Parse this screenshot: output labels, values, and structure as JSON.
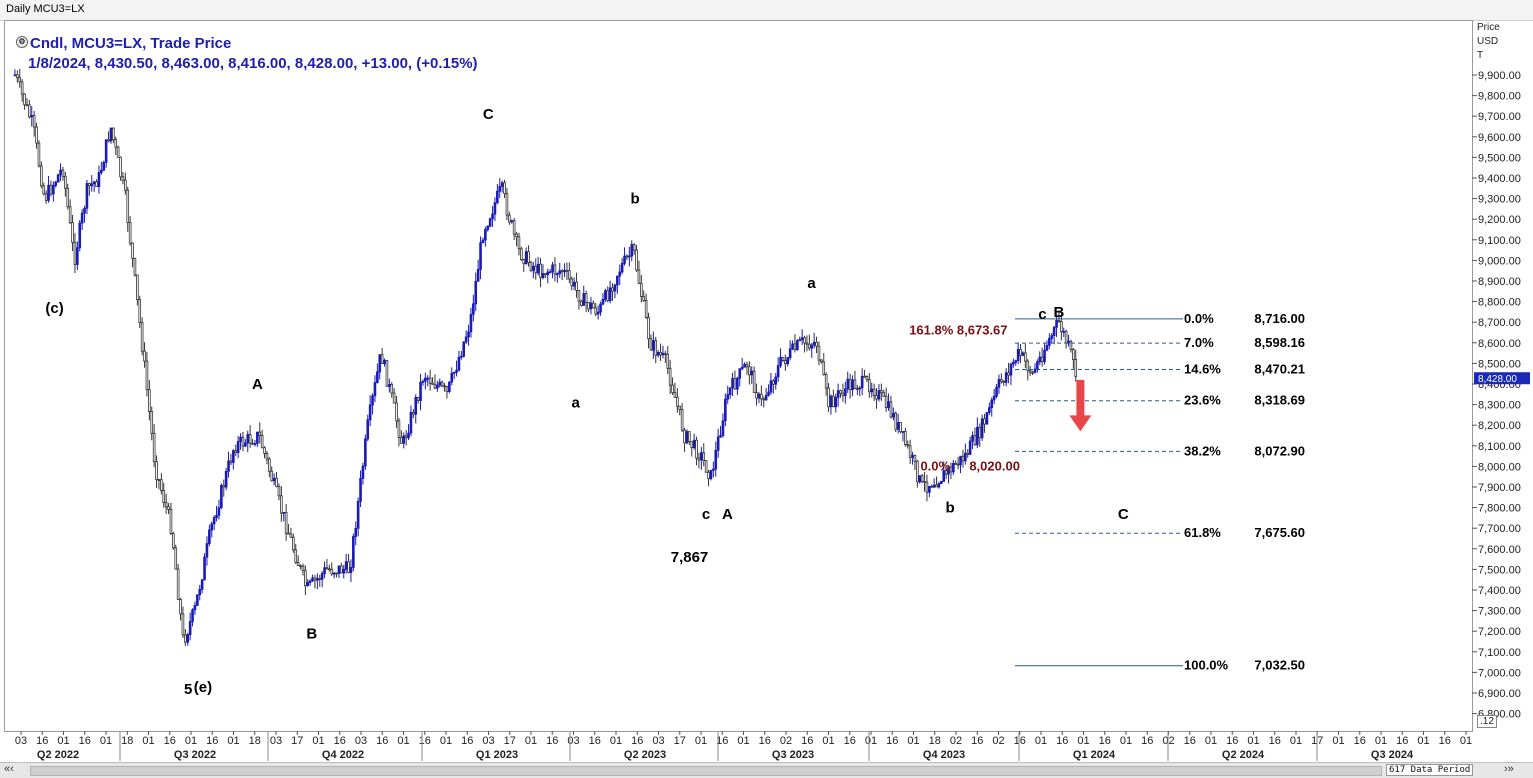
{
  "window": {
    "title": "Daily MCU3=LX"
  },
  "legend": {
    "line1": "Cndl, MCU3=LX, Trade Price",
    "line2": "1/8/2024, 8,430.50, 8,463.00, 8,416.00, 8,428.00, +13.00, (+0.15%)"
  },
  "axis": {
    "price_header": [
      "Price",
      "USD",
      "T"
    ],
    "y_ticks": [
      "9,900.00",
      "9,800.00",
      "9,700.00",
      "9,600.00",
      "9,500.00",
      "9,400.00",
      "9,300.00",
      "9,200.00",
      "9,100.00",
      "9,000.00",
      "8,900.00",
      "8,800.00",
      "8,700.00",
      "8,600.00",
      "8,500.00",
      "8,400.00",
      "8,300.00",
      "8,200.00",
      "8,100.00",
      "8,000.00",
      "7,900.00",
      "7,800.00",
      "7,700.00",
      "7,600.00",
      "7,500.00",
      "7,400.00",
      "7,300.00",
      "7,200.00",
      "7,100.00",
      "7,000.00",
      "6,900.00",
      "6,800.00"
    ],
    "x_day_ticks": [
      "03",
      "16",
      "01",
      "16",
      "01",
      "18",
      "01",
      "16",
      "01",
      "16",
      "01",
      "18",
      "03",
      "17",
      "01",
      "16",
      "03",
      "16",
      "01",
      "16",
      "01",
      "16",
      "03",
      "17",
      "01",
      "16",
      "03",
      "16",
      "01",
      "16",
      "03",
      "17",
      "01",
      "16",
      "01",
      "16",
      "02",
      "16",
      "01",
      "16",
      "01",
      "16",
      "01",
      "18",
      "02",
      "16",
      "02",
      "16",
      "01",
      "16",
      "01",
      "16",
      "01",
      "16",
      "02",
      "16",
      "01",
      "16",
      "01",
      "16",
      "01",
      "17",
      "01",
      "16",
      "01",
      "16",
      "01",
      "16",
      "01"
    ],
    "quarter_labels": [
      "Q2 2022",
      "Q3 2022",
      "Q4 2022",
      "Q1 2023",
      "Q2 2023",
      "Q3 2023",
      "Q4 2023",
      "Q1 2024",
      "Q2 2024",
      "Q3 2024"
    ],
    "last_price_label": "8,428.00",
    "corner_label": ".12"
  },
  "footer": {
    "data_period": "617 Data Period",
    "scroll_left": "«‹",
    "scroll_right": "›»"
  },
  "colors": {
    "candle_up": "#1a1ab8",
    "candle_down": "#333333",
    "legend": "#1f20b0",
    "fib_line": "#2a5a9a",
    "fib_text_dark": "#7a0f14",
    "arrow": "#e8474a"
  },
  "chart_data": {
    "type": "candlestick",
    "title": "Daily MCU3=LX",
    "ylabel": "Price USD T",
    "ylim": [
      6720,
      10050
    ],
    "x_range": [
      "2022-04-01",
      "2024-09-01"
    ],
    "price_path": [
      {
        "date": "2022-04-04",
        "price": 9900
      },
      {
        "date": "2022-04-15",
        "price": 9650
      },
      {
        "date": "2022-04-22",
        "price": 9300
      },
      {
        "date": "2022-05-03",
        "price": 9450
      },
      {
        "date": "2022-05-10",
        "price": 9000
      },
      {
        "date": "2022-05-18",
        "price": 9350
      },
      {
        "date": "2022-05-25",
        "price": 9400
      },
      {
        "date": "2022-06-01",
        "price": 9650
      },
      {
        "date": "2022-06-10",
        "price": 9300
      },
      {
        "date": "2022-06-20",
        "price": 8600
      },
      {
        "date": "2022-06-28",
        "price": 8000
      },
      {
        "date": "2022-07-08",
        "price": 7700
      },
      {
        "date": "2022-07-15",
        "price": 7150
      },
      {
        "date": "2022-07-22",
        "price": 7300
      },
      {
        "date": "2022-08-01",
        "price": 7700
      },
      {
        "date": "2022-08-15",
        "price": 8100
      },
      {
        "date": "2022-08-30",
        "price": 8150
      },
      {
        "date": "2022-09-12",
        "price": 7800
      },
      {
        "date": "2022-09-28",
        "price": 7400
      },
      {
        "date": "2022-10-10",
        "price": 7500
      },
      {
        "date": "2022-10-24",
        "price": 7500
      },
      {
        "date": "2022-11-04",
        "price": 8200
      },
      {
        "date": "2022-11-12",
        "price": 8550
      },
      {
        "date": "2022-11-25",
        "price": 8100
      },
      {
        "date": "2022-12-08",
        "price": 8450
      },
      {
        "date": "2022-12-22",
        "price": 8350
      },
      {
        "date": "2023-01-05",
        "price": 8700
      },
      {
        "date": "2023-01-13",
        "price": 9150
      },
      {
        "date": "2023-01-24",
        "price": 9350
      },
      {
        "date": "2023-02-03",
        "price": 9050
      },
      {
        "date": "2023-02-15",
        "price": 8950
      },
      {
        "date": "2023-03-02",
        "price": 8950
      },
      {
        "date": "2023-03-15",
        "price": 8800
      },
      {
        "date": "2023-03-24",
        "price": 8750
      },
      {
        "date": "2023-04-05",
        "price": 8950
      },
      {
        "date": "2023-04-14",
        "price": 9050
      },
      {
        "date": "2023-04-24",
        "price": 8600
      },
      {
        "date": "2023-05-04",
        "price": 8500
      },
      {
        "date": "2023-05-15",
        "price": 8150
      },
      {
        "date": "2023-05-25",
        "price": 8050
      },
      {
        "date": "2023-05-31",
        "price": 7950
      },
      {
        "date": "2023-06-10",
        "price": 8350
      },
      {
        "date": "2023-06-22",
        "price": 8500
      },
      {
        "date": "2023-06-30",
        "price": 8300
      },
      {
        "date": "2023-07-12",
        "price": 8500
      },
      {
        "date": "2023-07-25",
        "price": 8600
      },
      {
        "date": "2023-08-03",
        "price": 8600
      },
      {
        "date": "2023-08-10",
        "price": 8300
      },
      {
        "date": "2023-08-24",
        "price": 8400
      },
      {
        "date": "2023-09-05",
        "price": 8400
      },
      {
        "date": "2023-09-18",
        "price": 8250
      },
      {
        "date": "2023-09-29",
        "price": 8050
      },
      {
        "date": "2023-10-06",
        "price": 7900
      },
      {
        "date": "2023-10-18",
        "price": 7950
      },
      {
        "date": "2023-11-01",
        "price": 8050
      },
      {
        "date": "2023-11-12",
        "price": 8200
      },
      {
        "date": "2023-11-22",
        "price": 8400
      },
      {
        "date": "2023-12-04",
        "price": 8550
      },
      {
        "date": "2023-12-12",
        "price": 8450
      },
      {
        "date": "2023-12-21",
        "price": 8600
      },
      {
        "date": "2023-12-28",
        "price": 8700
      },
      {
        "date": "2024-01-04",
        "price": 8550
      },
      {
        "date": "2024-01-08",
        "price": 8428
      }
    ],
    "wave_labels": [
      {
        "text": "(c)",
        "date": "2022-04-28",
        "price": 8770
      },
      {
        "text": "A",
        "date": "2022-08-29",
        "price": 8400
      },
      {
        "text": "5",
        "date": "2022-07-18",
        "price": 6920
      },
      {
        "text": "(e)",
        "date": "2022-07-27",
        "price": 6930
      },
      {
        "text": "B",
        "date": "2022-10-01",
        "price": 7190
      },
      {
        "text": "C",
        "date": "2023-01-16",
        "price": 9710
      },
      {
        "text": "b",
        "date": "2023-04-15",
        "price": 9300
      },
      {
        "text": "a",
        "date": "2023-03-10",
        "price": 8310
      },
      {
        "text": "c",
        "date": "2023-05-28",
        "price": 7770
      },
      {
        "text": "A",
        "date": "2023-06-10",
        "price": 7770
      },
      {
        "text": "7,867",
        "date": "2023-05-18",
        "price": 7560
      },
      {
        "text": "a",
        "date": "2023-07-31",
        "price": 8890
      },
      {
        "text": "b",
        "date": "2023-10-23",
        "price": 7800
      },
      {
        "text": "c",
        "date": "2023-12-18",
        "price": 8740
      },
      {
        "text": "B",
        "date": "2023-12-28",
        "price": 8750
      },
      {
        "text": "C",
        "date": "2024-02-05",
        "price": 7770
      }
    ],
    "fibonacci": [
      {
        "label": "0.0%",
        "value": "8,716.00",
        "price": 8716
      },
      {
        "label": "7.0%",
        "value": "8,598.16",
        "price": 8598.16
      },
      {
        "label": "14.6%",
        "value": "8,470.21",
        "price": 8470.21
      },
      {
        "label": "23.6%",
        "value": "8,318.69",
        "price": 8318.69
      },
      {
        "label": "38.2%",
        "value": "8,072.90",
        "price": 8072.9
      },
      {
        "label": "61.8%",
        "value": "7,675.60",
        "price": 7675.6
      },
      {
        "label": "100.0%",
        "value": "7,032.50",
        "price": 7032.5
      }
    ],
    "extension_labels": [
      {
        "text": "161.8% 8,673.67",
        "date": "2023-10-28",
        "price": 8660
      },
      {
        "text": "0.0%",
        "date": "2023-10-14",
        "price": 8000
      },
      {
        "text": "8,020.00",
        "date": "2023-11-19",
        "price": 8000
      }
    ],
    "projection_arrow": {
      "date": "2024-01-10",
      "from_price": 8420,
      "to_price": 8170
    }
  }
}
